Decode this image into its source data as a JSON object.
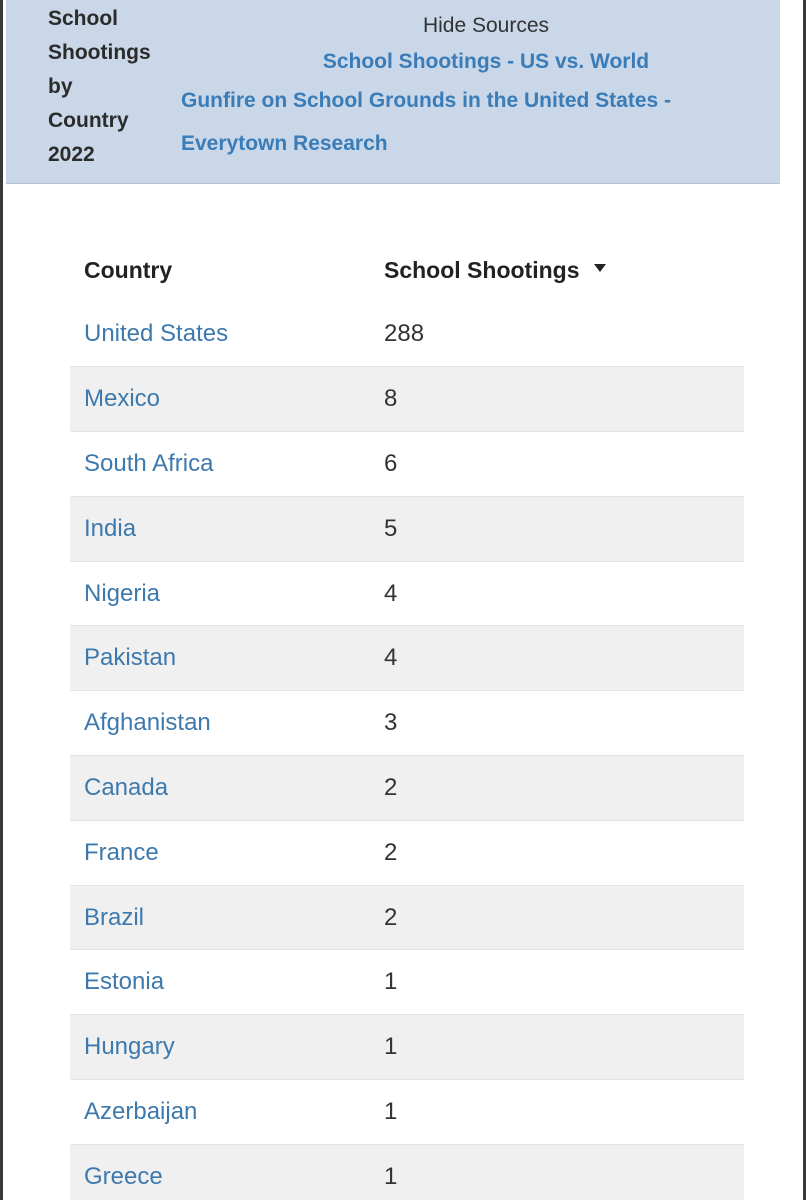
{
  "header": {
    "title_lines": [
      "School",
      "Shootings",
      "by",
      "Country",
      "2022"
    ],
    "hide_sources_label": "Hide Sources",
    "sources": [
      "School Shootings - US vs. World",
      "Gunfire on School Grounds in the United States -",
      "Everytown Research"
    ]
  },
  "table": {
    "columns": [
      "Country",
      "School Shootings"
    ],
    "sorted_column": "School Shootings",
    "sort_direction": "descending",
    "rows": [
      {
        "country": "United States",
        "value": "288"
      },
      {
        "country": "Mexico",
        "value": "8"
      },
      {
        "country": "South Africa",
        "value": "6"
      },
      {
        "country": "India",
        "value": "5"
      },
      {
        "country": "Nigeria",
        "value": "4"
      },
      {
        "country": "Pakistan",
        "value": "4"
      },
      {
        "country": "Afghanistan",
        "value": "3"
      },
      {
        "country": "Canada",
        "value": "2"
      },
      {
        "country": "France",
        "value": "2"
      },
      {
        "country": "Brazil",
        "value": "2"
      },
      {
        "country": "Estonia",
        "value": "1"
      },
      {
        "country": "Hungary",
        "value": "1"
      },
      {
        "country": "Azerbaijan",
        "value": "1"
      },
      {
        "country": "Greece",
        "value": "1"
      }
    ]
  },
  "colors": {
    "header_bg": "#c9d7e8",
    "link": "#3a7cb8",
    "stripe": "#f0f0f0"
  }
}
